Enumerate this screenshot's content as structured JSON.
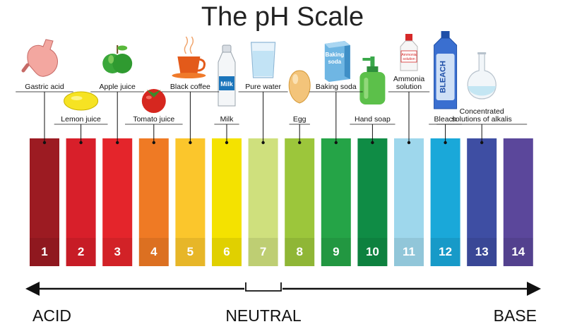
{
  "title": "The pH Scale",
  "scale": [
    {
      "value": "1",
      "color": "#9c1b22",
      "label": "Gastric acid",
      "icon": "stomach-icon"
    },
    {
      "value": "2",
      "color": "#d81f2a",
      "label": "Lemon juice",
      "icon": "lemon-icon"
    },
    {
      "value": "3",
      "color": "#e4252b",
      "label": "Apple juice",
      "icon": "apple-icon"
    },
    {
      "value": "4",
      "color": "#ef7a24",
      "label": "Tomato juice",
      "icon": "tomato-icon"
    },
    {
      "value": "5",
      "color": "#fbc62c",
      "label": "Black coffee",
      "icon": "coffee-cup-icon"
    },
    {
      "value": "6",
      "color": "#f4e200",
      "label": "Milk",
      "icon": "milk-bottle-icon"
    },
    {
      "value": "7",
      "color": "#cfe07d",
      "label": "Pure water",
      "icon": "water-glass-icon"
    },
    {
      "value": "8",
      "color": "#9cc63b",
      "label": "Egg",
      "icon": "egg-icon"
    },
    {
      "value": "9",
      "color": "#25a447",
      "label": "Baking soda",
      "icon": "baking-soda-box-icon",
      "icon_text": [
        "Baking",
        "soda"
      ]
    },
    {
      "value": "10",
      "color": "#0f8c45",
      "label": "Hand soap",
      "icon": "soap-dispenser-icon"
    },
    {
      "value": "11",
      "color": "#9ed7ec",
      "label": "Ammonia\nsolution",
      "icon": "ammonia-bottle-icon",
      "icon_text": [
        "Ammonia",
        "solution"
      ]
    },
    {
      "value": "12",
      "color": "#1aa8d9",
      "label": "Bleach",
      "icon": "bleach-bottle-icon",
      "icon_text": [
        "BLEACH"
      ]
    },
    {
      "value": "13",
      "color": "#3e4ea3",
      "label": "Concentrated\nsolutions of alkalis",
      "icon": "flask-icon"
    },
    {
      "value": "14",
      "color": "#5b479b",
      "label": "",
      "icon": ""
    }
  ],
  "axis": {
    "left": "ACID",
    "center": "NEUTRAL",
    "right": "BASE"
  }
}
